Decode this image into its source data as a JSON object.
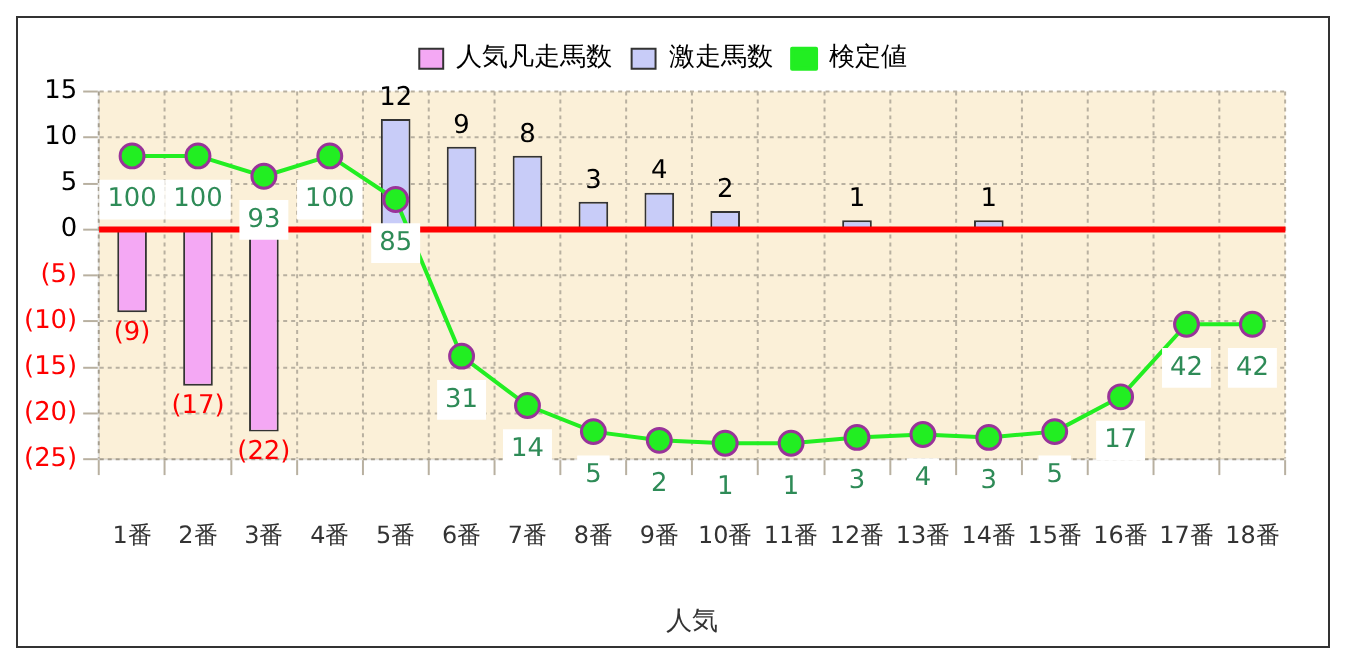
{
  "chart_data": {
    "type": "bar",
    "xlabel": "人気",
    "categories": [
      "1番",
      "2番",
      "3番",
      "4番",
      "5番",
      "6番",
      "7番",
      "8番",
      "9番",
      "10番",
      "11番",
      "12番",
      "13番",
      "14番",
      "15番",
      "16番",
      "17番",
      "18番"
    ],
    "series": [
      {
        "name": "人気凡走馬数",
        "color": "#f4a8f4",
        "values": [
          -9,
          -17,
          -22,
          null,
          null,
          null,
          null,
          null,
          null,
          null,
          null,
          null,
          null,
          null,
          null,
          null,
          null,
          null
        ],
        "value_labels": [
          "(9)",
          "(17)",
          "(22)",
          null,
          null,
          null,
          null,
          null,
          null,
          null,
          null,
          null,
          null,
          null,
          null,
          null,
          null,
          null
        ]
      },
      {
        "name": "激走馬数",
        "color": "#c8ccf8",
        "values": [
          null,
          null,
          null,
          null,
          12,
          9,
          8,
          3,
          4,
          2,
          null,
          1,
          null,
          1,
          null,
          null,
          null,
          null
        ],
        "value_labels": [
          null,
          null,
          null,
          null,
          "12",
          "9",
          "8",
          "3",
          "4",
          "2",
          null,
          "1",
          null,
          "1",
          null,
          null,
          null,
          null
        ]
      },
      {
        "name": "検定値",
        "type": "line",
        "axis": "y2",
        "color": "#22ee22",
        "marker": "circle",
        "values": [
          100,
          100,
          93,
          100,
          85,
          31,
          14,
          5,
          2,
          1,
          1,
          3,
          4,
          3,
          5,
          17,
          42,
          42
        ],
        "value_labels": [
          "100",
          "100",
          "93",
          "100",
          "85",
          "31",
          "14",
          "5",
          "2",
          "1",
          "1",
          "3",
          "4",
          "3",
          "5",
          "17",
          "42",
          "42"
        ]
      }
    ],
    "ylim": [
      -25,
      15
    ],
    "yticks": [
      {
        "value": -25,
        "label": "(25)"
      },
      {
        "value": -20,
        "label": "(20)"
      },
      {
        "value": -15,
        "label": "(15)"
      },
      {
        "value": -10,
        "label": "(10)"
      },
      {
        "value": -5,
        "label": "(5)"
      },
      0,
      5,
      10,
      15
    ],
    "y2lim": [
      -4.5,
      122.2
    ],
    "ref_lines": [
      {
        "axis": "y",
        "value": 0,
        "color": "#ff0000"
      }
    ],
    "grid": true,
    "legend": "top"
  }
}
